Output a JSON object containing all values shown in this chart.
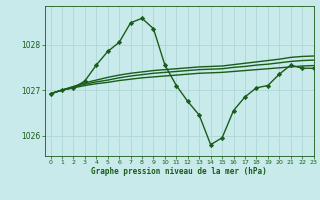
{
  "title": "Graphe pression niveau de la mer (hPa)",
  "bg_color": "#c8eaea",
  "grid_color": "#b0d8d8",
  "line_color": "#1a5c1a",
  "xlim": [
    -0.5,
    23
  ],
  "ylim": [
    1025.55,
    1028.85
  ],
  "yticks": [
    1026,
    1027,
    1028
  ],
  "xticks": [
    0,
    1,
    2,
    3,
    4,
    5,
    6,
    7,
    8,
    9,
    10,
    11,
    12,
    13,
    14,
    15,
    16,
    17,
    18,
    19,
    20,
    21,
    22,
    23
  ],
  "series": [
    {
      "x": [
        0,
        1,
        2,
        3,
        4,
        5,
        6,
        7,
        8,
        9,
        10,
        11,
        12,
        13,
        14,
        15,
        16,
        17,
        18,
        19,
        20,
        21,
        22,
        23
      ],
      "y": [
        1026.92,
        1027.0,
        1027.05,
        1027.2,
        1027.55,
        1027.85,
        1028.05,
        1028.48,
        1028.58,
        1028.35,
        1027.55,
        1027.1,
        1026.75,
        1026.45,
        1025.8,
        1025.95,
        1026.55,
        1026.85,
        1027.05,
        1027.1,
        1027.35,
        1027.55,
        1027.48,
        1027.48
      ],
      "marker": "D",
      "ms": 2.2,
      "lw": 1.0
    },
    {
      "x": [
        0,
        1,
        2,
        3,
        4,
        5,
        6,
        7,
        8,
        9,
        10,
        11,
        12,
        13,
        14,
        15,
        16,
        17,
        18,
        19,
        20,
        21,
        22,
        23
      ],
      "y": [
        1026.92,
        1027.0,
        1027.08,
        1027.16,
        1027.22,
        1027.28,
        1027.33,
        1027.37,
        1027.4,
        1027.43,
        1027.45,
        1027.47,
        1027.49,
        1027.51,
        1027.52,
        1027.53,
        1027.56,
        1027.59,
        1027.62,
        1027.65,
        1027.68,
        1027.72,
        1027.74,
        1027.75
      ],
      "marker": null,
      "ms": 0,
      "lw": 1.0
    },
    {
      "x": [
        0,
        1,
        2,
        3,
        4,
        5,
        6,
        7,
        8,
        9,
        10,
        11,
        12,
        13,
        14,
        15,
        16,
        17,
        18,
        19,
        20,
        21,
        22,
        23
      ],
      "y": [
        1026.92,
        1027.0,
        1027.07,
        1027.13,
        1027.18,
        1027.22,
        1027.27,
        1027.31,
        1027.34,
        1027.37,
        1027.39,
        1027.41,
        1027.43,
        1027.45,
        1027.46,
        1027.47,
        1027.5,
        1027.52,
        1027.55,
        1027.57,
        1027.6,
        1027.63,
        1027.65,
        1027.66
      ],
      "marker": null,
      "ms": 0,
      "lw": 1.0
    },
    {
      "x": [
        0,
        1,
        2,
        3,
        4,
        5,
        6,
        7,
        8,
        9,
        10,
        11,
        12,
        13,
        14,
        15,
        16,
        17,
        18,
        19,
        20,
        21,
        22,
        23
      ],
      "y": [
        1026.92,
        1027.0,
        1027.05,
        1027.1,
        1027.14,
        1027.17,
        1027.21,
        1027.24,
        1027.27,
        1027.29,
        1027.31,
        1027.33,
        1027.35,
        1027.37,
        1027.38,
        1027.39,
        1027.41,
        1027.43,
        1027.45,
        1027.47,
        1027.49,
        1027.51,
        1027.53,
        1027.54
      ],
      "marker": null,
      "ms": 0,
      "lw": 1.0
    }
  ]
}
